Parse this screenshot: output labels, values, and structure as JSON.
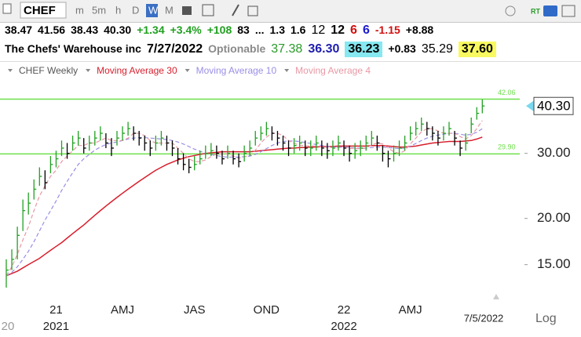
{
  "toolbar": {
    "symbol": "CHEF",
    "timeframes": [
      "m",
      "5m",
      "h",
      "D",
      "W",
      "M"
    ],
    "active": "W",
    "badge": "RT"
  },
  "quote": {
    "row1": [
      {
        "text": "38.47",
        "color": "#000000",
        "bold": true
      },
      {
        "text": "41.56",
        "color": "#000000",
        "bold": true
      },
      {
        "text": "38.43",
        "color": "#000000",
        "bold": true
      },
      {
        "text": "40.30",
        "color": "#000000",
        "bold": true
      },
      {
        "text": "+1.34",
        "color": "#1fa01f",
        "bold": true
      },
      {
        "text": "+3.4%",
        "color": "#1fa01f",
        "bold": true
      },
      {
        "text": "+108",
        "color": "#1fa01f",
        "bold": true
      },
      {
        "text": "83",
        "color": "#000000",
        "bold": true
      },
      {
        "text": "...",
        "color": "#000000",
        "bold": true
      },
      {
        "text": "1.3",
        "color": "#000000",
        "bold": true
      },
      {
        "text": "1.6",
        "color": "#000000",
        "bold": true
      },
      {
        "text": "12",
        "color": "#000000",
        "bold": false,
        "big": true
      },
      {
        "text": "12",
        "color": "#000000",
        "bold": true,
        "big": true
      },
      {
        "text": "6",
        "color": "#d01010",
        "bold": true,
        "big": true
      },
      {
        "text": "6",
        "color": "#1a1ad0",
        "bold": true,
        "big": true
      },
      {
        "text": "-1.15",
        "color": "#d01010",
        "bold": true
      },
      {
        "text": "+8.88",
        "color": "#000000",
        "bold": true
      }
    ],
    "row2": [
      {
        "text": "The Chefs' Warehouse inc",
        "color": "#000000",
        "bold": true
      },
      {
        "text": "7/27/2022",
        "color": "#000000",
        "bold": true,
        "big": true
      },
      {
        "text": "Optionable",
        "color": "#8a8a8a",
        "bold": true
      },
      {
        "text": "37.38",
        "color": "#2a9a2a",
        "bold": false,
        "big": true
      },
      {
        "text": "36.30",
        "color": "#2020b0",
        "bold": true,
        "big": true
      },
      {
        "text": "36.23",
        "color": "#000000",
        "bold": true,
        "big": true,
        "bg": "#86e8f0"
      },
      {
        "text": "+0.83",
        "color": "#000000",
        "bold": true
      },
      {
        "text": "35.29",
        "color": "#000000",
        "bold": false,
        "big": true
      },
      {
        "text": "37.60",
        "color": "#000000",
        "bold": true,
        "big": true,
        "bg": "#f8f860"
      }
    ]
  },
  "chart_data": {
    "type": "ohlc",
    "title": "CHEF Weekly",
    "scale": "log",
    "ylim": [
      12.5,
      51.5
    ],
    "yticks": [
      {
        "value": 15,
        "label": "15.00"
      },
      {
        "value": 20,
        "label": "20.00"
      },
      {
        "value": 30,
        "label": "30.00"
      }
    ],
    "categories": [
      null,
      null,
      null,
      null,
      null,
      null,
      null,
      null,
      null,
      "21",
      null,
      null,
      null,
      null,
      null,
      null,
      null,
      null,
      null,
      null,
      null,
      "AMJ",
      null,
      null,
      null,
      null,
      null,
      null,
      null,
      null,
      null,
      null,
      null,
      null,
      "JAS",
      null,
      null,
      null,
      null,
      null,
      null,
      null,
      null,
      null,
      null,
      null,
      null,
      "OND",
      null,
      null,
      null,
      null,
      null,
      null,
      null,
      null,
      null,
      null,
      null,
      null,
      null,
      "22",
      null,
      null,
      null,
      null,
      null,
      null,
      null,
      null,
      null,
      null,
      null,
      "AMJ",
      null,
      null,
      null,
      null,
      null,
      null,
      null,
      null,
      null,
      null,
      null,
      null,
      null
    ],
    "years": [
      "20",
      null,
      null,
      null,
      null,
      null,
      null,
      null,
      null,
      "2021",
      null,
      null,
      null,
      null,
      null,
      null,
      null,
      null,
      null,
      null,
      null,
      null,
      null,
      null,
      null,
      null,
      null,
      null,
      null,
      null,
      null,
      null,
      null,
      null,
      null,
      null,
      null,
      null,
      null,
      null,
      null,
      null,
      null,
      null,
      null,
      null,
      null,
      null,
      null,
      null,
      null,
      null,
      null,
      null,
      null,
      null,
      null,
      null,
      null,
      null,
      null,
      "2022",
      null,
      null,
      null,
      null,
      null,
      null,
      null,
      null,
      null,
      null,
      null,
      null,
      null,
      null,
      null,
      null,
      null,
      null,
      null,
      null,
      null,
      null,
      null,
      null,
      null
    ],
    "bars": {
      "up_color": "#22a022",
      "down_color": "#000000",
      "high": [
        15.5,
        16.5,
        19,
        22.5,
        23.5,
        25.5,
        27.5,
        27,
        29.5,
        30.5,
        32.5,
        32,
        33.5,
        34.5,
        33,
        33.5,
        34.5,
        35.5,
        34,
        33,
        34.5,
        35.5,
        36.5,
        35.5,
        34.5,
        33.5,
        32.5,
        33.5,
        34.5,
        33.5,
        32.5,
        31,
        30,
        29,
        29.5,
        30.5,
        31.5,
        32,
        31.5,
        30.5,
        31.5,
        30.5,
        30,
        31.5,
        32.5,
        34.5,
        35.5,
        36.5,
        35.5,
        34.5,
        33.5,
        32.5,
        33,
        33.5,
        32.5,
        32.5,
        33.5,
        32.5,
        32,
        32.5,
        33.5,
        32.5,
        31.5,
        32,
        32.5,
        33.5,
        34.5,
        33.5,
        31.5,
        30.5,
        31.5,
        32.5,
        33.5,
        35.5,
        36.5,
        37.5,
        36.5,
        35.5,
        34.5,
        35.5,
        36.5,
        34.5,
        32.5,
        34,
        37.5,
        40,
        42
      ],
      "low": [
        13,
        14.5,
        15.5,
        18.5,
        20.5,
        22.5,
        24.5,
        24,
        26.5,
        27.5,
        29.5,
        29,
        30.5,
        31.5,
        30,
        30.5,
        31.5,
        32.5,
        31,
        29.5,
        31.5,
        32.5,
        33.5,
        32.5,
        31.5,
        30.5,
        29.5,
        30.5,
        31.5,
        30.5,
        29.5,
        28,
        27,
        26.5,
        27,
        28,
        29,
        29.5,
        29,
        28,
        29,
        28,
        27.5,
        28.5,
        29.5,
        31.5,
        32.5,
        33.5,
        32.5,
        31.5,
        30.5,
        29.5,
        30,
        30.5,
        29.5,
        29.5,
        30.5,
        29.5,
        29,
        29.5,
        30.5,
        29.5,
        28.5,
        29,
        29.5,
        30.5,
        31.5,
        30.5,
        28.5,
        27.5,
        28.5,
        29.5,
        30.5,
        32.5,
        33.5,
        34.5,
        33.5,
        32.5,
        31.5,
        32.5,
        33.5,
        31.5,
        29.5,
        30.5,
        34,
        37,
        38.5
      ],
      "close": [
        14.5,
        15.5,
        18,
        21,
        22,
        24,
        26,
        25,
        28,
        29,
        31,
        30,
        32,
        33,
        31,
        32,
        33,
        34,
        32,
        31,
        33,
        34,
        35,
        34,
        33,
        32,
        31,
        32,
        33,
        32,
        31,
        29,
        28,
        27.5,
        28,
        29,
        30,
        30.5,
        30,
        29,
        30,
        29,
        28.5,
        30,
        31,
        33,
        34,
        35,
        34,
        33,
        32,
        31,
        31.5,
        32,
        31,
        31,
        32,
        31,
        30.5,
        31,
        32,
        31,
        30,
        30.5,
        31,
        32,
        33,
        32,
        30,
        29,
        30,
        31,
        32,
        34,
        35,
        36,
        35,
        34,
        33,
        34,
        35,
        33,
        31,
        32,
        36,
        38.5,
        40.3
      ]
    },
    "series": [
      {
        "name": "Moving Average 30",
        "color": "#d81e2c",
        "dash": false,
        "values": [
          14,
          14.2,
          14.4,
          14.7,
          15,
          15.3,
          15.6,
          16,
          16.4,
          16.8,
          17.2,
          17.7,
          18.2,
          18.7,
          19.2,
          19.8,
          20.4,
          21,
          21.6,
          22.2,
          22.8,
          23.4,
          24,
          24.6,
          25.2,
          25.8,
          26.4,
          27,
          27.5,
          28,
          28.4,
          28.8,
          29.1,
          29.4,
          29.6,
          29.8,
          30,
          30.1,
          30.2,
          30.3,
          30.3,
          30.3,
          30.3,
          30.3,
          30.3,
          30.4,
          30.5,
          30.6,
          30.7,
          30.8,
          30.9,
          31,
          31,
          31.1,
          31.1,
          31.2,
          31.2,
          31.3,
          31.3,
          31.3,
          31.4,
          31.4,
          31.4,
          31.4,
          31.4,
          31.4,
          31.5,
          31.5,
          31.5,
          31.4,
          31.3,
          31.2,
          31.2,
          31.3,
          31.4,
          31.6,
          31.8,
          32,
          32.1,
          32.2,
          32.3,
          32.3,
          32.3,
          32.4,
          32.5,
          32.8,
          33.2
        ]
      },
      {
        "name": "Moving Average 10",
        "color": "#9a8ee6",
        "dash": true,
        "values": [
          14,
          14.3,
          14.8,
          15.5,
          16.3,
          17.3,
          18.5,
          19.8,
          21,
          22.3,
          23.8,
          25.2,
          26.6,
          28,
          29,
          29.8,
          30.6,
          31.2,
          31.7,
          32,
          32.2,
          32.5,
          32.8,
          33,
          33.1,
          33.1,
          33,
          32.9,
          32.8,
          32.7,
          32.5,
          32.2,
          31.8,
          31.3,
          30.8,
          30.4,
          30,
          29.8,
          29.6,
          29.4,
          29.3,
          29.3,
          29.3,
          29.4,
          29.5,
          29.8,
          30.3,
          30.9,
          31.5,
          32,
          32.3,
          32.4,
          32.4,
          32.3,
          32.1,
          31.9,
          31.7,
          31.5,
          31.3,
          31.2,
          31.2,
          31.2,
          31.1,
          31,
          31,
          31,
          31.1,
          31.2,
          31.2,
          31.1,
          31,
          30.9,
          31,
          31.4,
          31.9,
          32.5,
          33,
          33.4,
          33.6,
          33.8,
          34,
          34,
          33.8,
          33.6,
          33.8,
          34.2,
          35
        ]
      },
      {
        "name": "Moving Average 4",
        "color": "#e898a4",
        "dash": true,
        "values": [
          14,
          14.8,
          16,
          17.5,
          19,
          21,
          23,
          24.5,
          26,
          27,
          28.5,
          29.5,
          30.5,
          31.5,
          31.5,
          32,
          32,
          32.5,
          33,
          32.5,
          32.5,
          32.5,
          33,
          34,
          34,
          33.5,
          32.5,
          32,
          32,
          32,
          32,
          31,
          30,
          29,
          28.5,
          28.5,
          28.8,
          29.4,
          29.9,
          29.9,
          29.9,
          29.5,
          29.1,
          29.4,
          29.6,
          30.6,
          32,
          33.2,
          34,
          34,
          33.5,
          32.5,
          31.9,
          31.6,
          31.4,
          31.4,
          31.4,
          31.3,
          31.1,
          31.1,
          31.1,
          31.1,
          31,
          30.9,
          30.9,
          31,
          31.6,
          32,
          31.8,
          31,
          30.3,
          30,
          30.5,
          31.8,
          33,
          34.3,
          35,
          35,
          34.5,
          34,
          34,
          34,
          33.3,
          32.8,
          33.5,
          35,
          36.8
        ]
      }
    ],
    "hlines": [
      {
        "value": 42.06,
        "label": "42.06",
        "color": "#6ee04c"
      },
      {
        "value": 29.9,
        "label": "29.90",
        "color": "#6ee04c"
      }
    ],
    "last_price": {
      "value": 40.3,
      "label": "40.30"
    },
    "date_label": "7/5/2022",
    "scale_label": "Log"
  }
}
